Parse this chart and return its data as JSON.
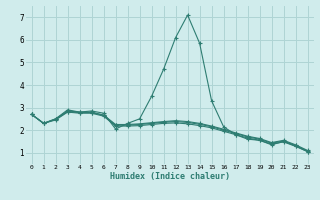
{
  "xlabel": "Humidex (Indice chaleur)",
  "x": [
    0,
    1,
    2,
    3,
    4,
    5,
    6,
    7,
    8,
    9,
    10,
    11,
    12,
    13,
    14,
    15,
    16,
    17,
    18,
    19,
    20,
    21,
    22,
    23
  ],
  "line_spike": [
    2.7,
    2.3,
    2.5,
    2.9,
    2.8,
    2.85,
    2.75,
    2.05,
    2.3,
    2.5,
    3.5,
    4.7,
    6.1,
    7.1,
    5.85,
    3.3,
    2.15,
    1.8,
    1.6,
    1.55,
    1.35,
    1.5,
    1.3,
    1.05
  ],
  "line_a": [
    2.7,
    2.3,
    2.45,
    2.8,
    2.75,
    2.75,
    2.62,
    2.18,
    2.18,
    2.2,
    2.25,
    2.3,
    2.32,
    2.28,
    2.2,
    2.1,
    1.95,
    1.8,
    1.65,
    1.55,
    1.38,
    1.48,
    1.28,
    1.05
  ],
  "line_b": [
    2.7,
    2.3,
    2.48,
    2.82,
    2.78,
    2.78,
    2.65,
    2.22,
    2.22,
    2.25,
    2.3,
    2.35,
    2.38,
    2.34,
    2.26,
    2.15,
    2.0,
    1.85,
    1.7,
    1.6,
    1.42,
    1.52,
    1.32,
    1.07
  ],
  "line_c": [
    2.7,
    2.3,
    2.5,
    2.85,
    2.8,
    2.8,
    2.67,
    2.25,
    2.25,
    2.28,
    2.33,
    2.38,
    2.42,
    2.38,
    2.3,
    2.18,
    2.04,
    1.88,
    1.73,
    1.63,
    1.45,
    1.55,
    1.35,
    1.1
  ],
  "line_color": "#2e7d72",
  "bg_color": "#d0ecec",
  "grid_color": "#aed4d4",
  "ylim": [
    0.5,
    7.5
  ],
  "xlim": [
    -0.5,
    23.5
  ],
  "yticks": [
    1,
    2,
    3,
    4,
    5,
    6,
    7
  ],
  "xticks": [
    0,
    1,
    2,
    3,
    4,
    5,
    6,
    7,
    8,
    9,
    10,
    11,
    12,
    13,
    14,
    15,
    16,
    17,
    18,
    19,
    20,
    21,
    22,
    23
  ]
}
